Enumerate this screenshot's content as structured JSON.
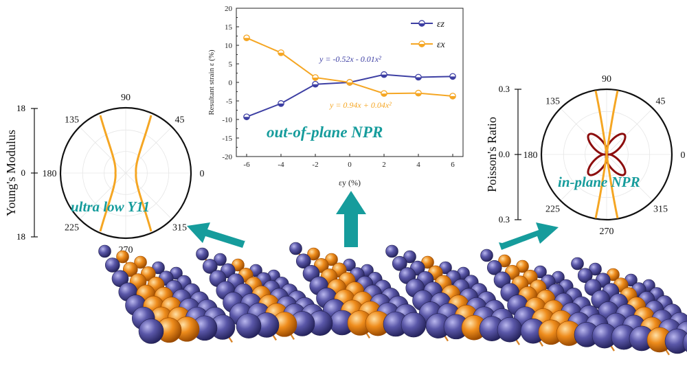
{
  "colors": {
    "blue": "#3d3fa3",
    "orange": "#f5a623",
    "teal": "#169c9c",
    "darkred": "#8c0d0d",
    "atom_purple": "#5a57a8",
    "atom_orange": "#ee8c1c"
  },
  "chart_data": [
    {
      "type": "line",
      "xlabel": "εy (%)",
      "ylabel": "Resultant strain ε (%)",
      "x": [
        -6,
        -4,
        -2,
        0,
        2,
        4,
        6
      ],
      "xlim": [
        -6.6,
        6.6
      ],
      "ylim": [
        -20,
        20
      ],
      "xticks": [
        "-6",
        "-4",
        "-2",
        "0",
        "2",
        "4",
        "6"
      ],
      "yticks": [
        "-20",
        "-15",
        "-10",
        "-5",
        "0",
        "5",
        "10",
        "15",
        "20"
      ],
      "series": [
        {
          "name": "εz",
          "color": "#3d3fa3",
          "values": [
            -9.3,
            -5.7,
            -0.5,
            0.0,
            2.1,
            1.4,
            1.6
          ]
        },
        {
          "name": "εx",
          "color": "#f5a623",
          "values": [
            12.0,
            8.0,
            1.3,
            0.0,
            -3.0,
            -2.9,
            -3.7
          ]
        }
      ],
      "legend_position": "top-right",
      "annotations": [
        {
          "text": "y = -0.52x - 0.01x²",
          "color": "#3d3fa3"
        },
        {
          "text": "y = 0.94x + 0.04x²",
          "color": "#f5a623"
        }
      ],
      "caption": "out-of-plane NPR"
    },
    {
      "type": "polar",
      "ylabel": "Young's Modulus",
      "radial_ticks": [
        "18",
        "0",
        "18"
      ],
      "angle_labels": [
        "90",
        "45",
        "0",
        "315",
        "270",
        "225",
        "180",
        "135"
      ],
      "caption": "ultra low Y11"
    },
    {
      "type": "polar",
      "ylabel": "Poisson's Ratio",
      "radial_ticks": [
        "0.3",
        "0.0",
        "0.3"
      ],
      "angle_labels": [
        "90",
        "45",
        "0",
        "315",
        "270",
        "225",
        "180",
        "135"
      ],
      "caption": "in-plane NPR"
    }
  ]
}
